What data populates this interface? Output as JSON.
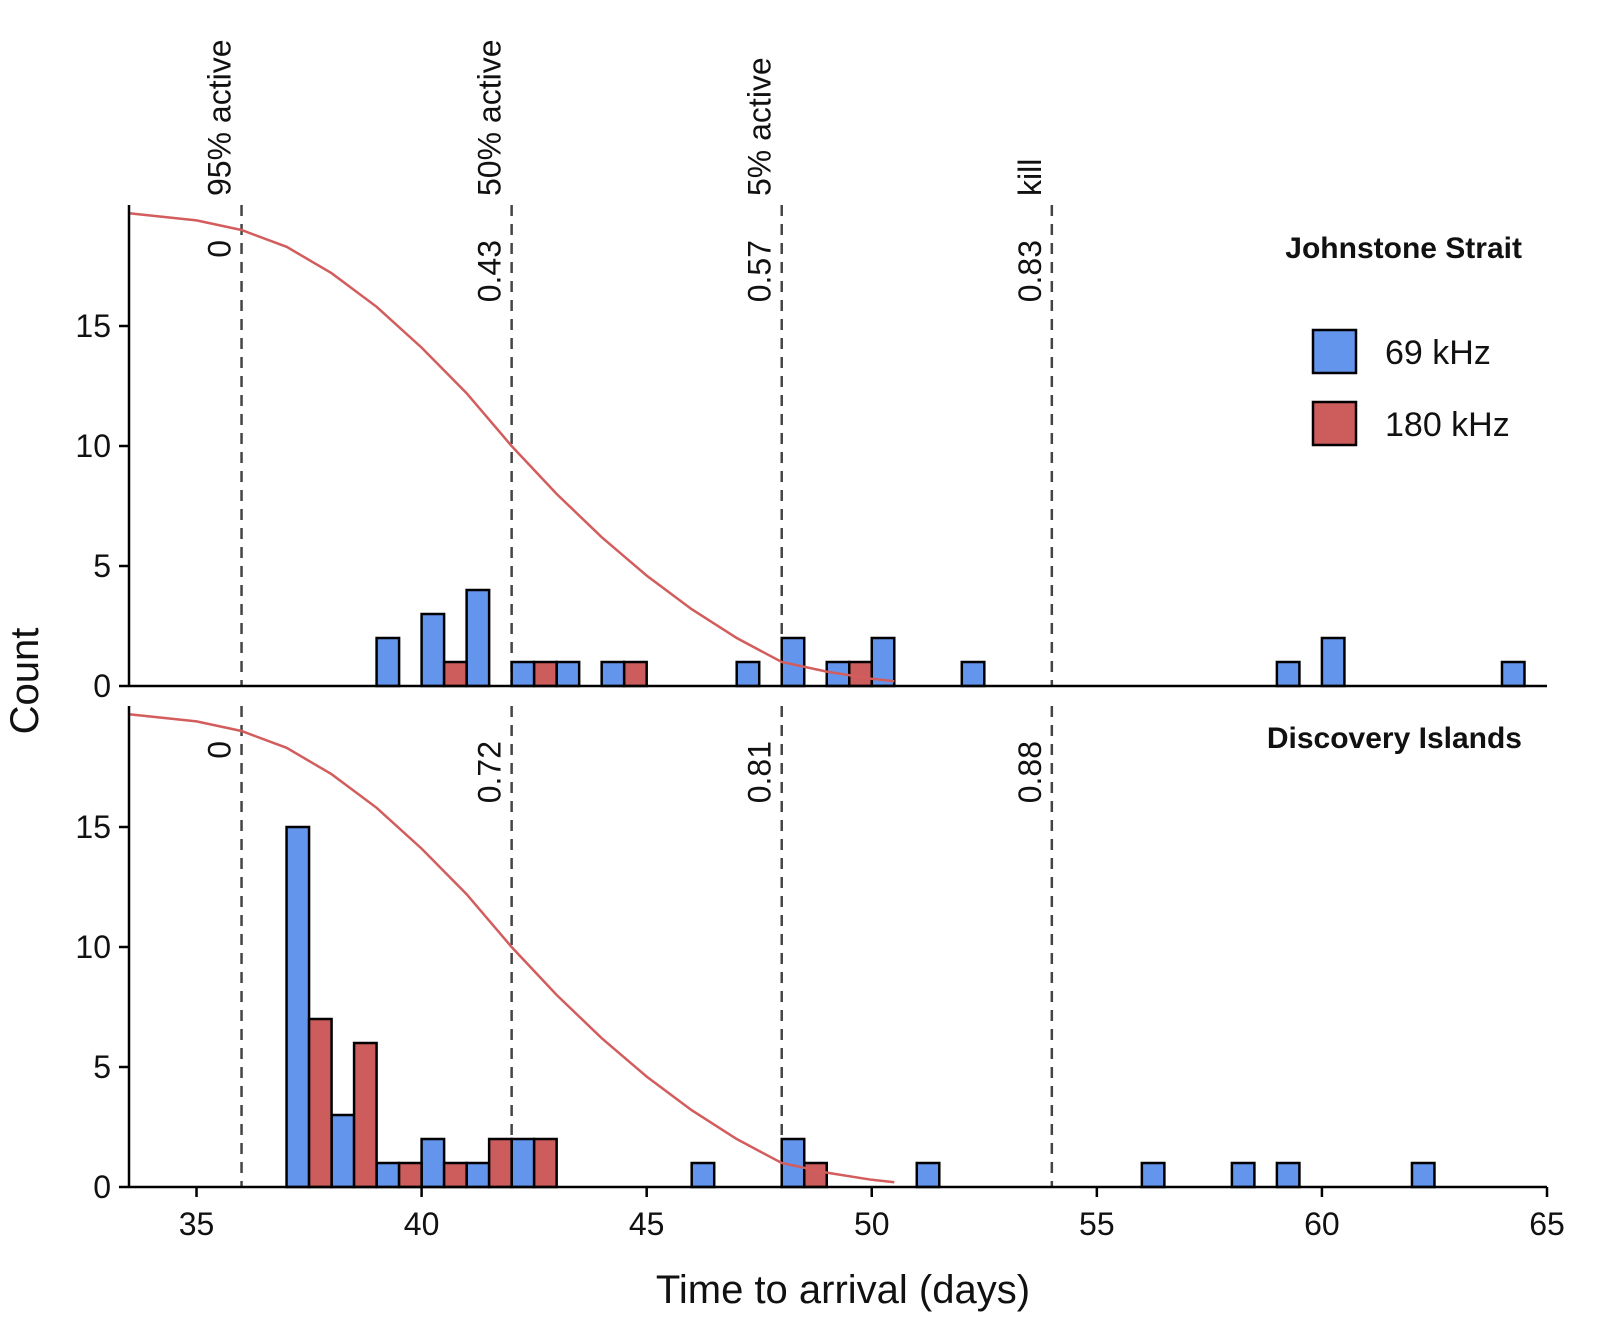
{
  "chart_data": {
    "type": "bar",
    "subtype": "histogram",
    "xlabel": "Time to arrival (days)",
    "ylabel": "Count",
    "xlim": [
      33.5,
      65
    ],
    "xticks": [
      35,
      40,
      45,
      50,
      55,
      60,
      65
    ],
    "ylim": [
      0,
      19.8
    ],
    "yticks": [
      0,
      5,
      10,
      15
    ],
    "bin_width": 0.5,
    "colors": {
      "69 kHz": "#6495ed",
      "180 kHz": "#cd5c5c",
      "curve": "#d35c5c"
    },
    "legend": {
      "position": "right",
      "entries": [
        "69 kHz",
        "180 kHz"
      ]
    },
    "vlines": [
      {
        "x": 36,
        "label": "95% active"
      },
      {
        "x": 42,
        "label": "50% active"
      },
      {
        "x": 48,
        "label": "5% active"
      },
      {
        "x": 54,
        "label": "kill"
      }
    ],
    "curve": {
      "description": "decreasing activity curve scaled to panel",
      "x": [
        33.5,
        34,
        35,
        36,
        37,
        38,
        39,
        40,
        41,
        42,
        43,
        44,
        45,
        46,
        47,
        48,
        49,
        50,
        50.5
      ],
      "y": [
        19.7,
        19.6,
        19.4,
        19.0,
        18.3,
        17.2,
        15.8,
        14.1,
        12.2,
        10.0,
        8.0,
        6.2,
        4.6,
        3.2,
        2.0,
        1.0,
        0.6,
        0.3,
        0.2
      ]
    },
    "panels": [
      {
        "title": "Johnstone Strait",
        "vline_values": [
          "0",
          "0.43",
          "0.57",
          "0.83"
        ],
        "series": [
          {
            "name": "69 kHz",
            "bins": [
              {
                "start": 39.0,
                "count": 2
              },
              {
                "start": 40.0,
                "count": 3
              },
              {
                "start": 41.0,
                "count": 4
              },
              {
                "start": 42.0,
                "count": 1
              },
              {
                "start": 43.0,
                "count": 1
              },
              {
                "start": 44.0,
                "count": 1
              },
              {
                "start": 47.0,
                "count": 1
              },
              {
                "start": 48.0,
                "count": 2
              },
              {
                "start": 49.0,
                "count": 1
              },
              {
                "start": 50.0,
                "count": 2
              },
              {
                "start": 52.0,
                "count": 1
              },
              {
                "start": 59.0,
                "count": 1
              },
              {
                "start": 60.0,
                "count": 2
              },
              {
                "start": 64.0,
                "count": 1
              }
            ]
          },
          {
            "name": "180 kHz",
            "bins": [
              {
                "start": 40.5,
                "count": 1
              },
              {
                "start": 42.5,
                "count": 1
              },
              {
                "start": 44.5,
                "count": 1
              },
              {
                "start": 49.5,
                "count": 1
              }
            ]
          }
        ]
      },
      {
        "title": "Discovery Islands",
        "vline_values": [
          "0",
          "0.72",
          "0.81",
          "0.88"
        ],
        "series": [
          {
            "name": "69 kHz",
            "bins": [
              {
                "start": 37.0,
                "count": 15
              },
              {
                "start": 38.0,
                "count": 3
              },
              {
                "start": 39.0,
                "count": 1
              },
              {
                "start": 40.0,
                "count": 2
              },
              {
                "start": 41.0,
                "count": 1
              },
              {
                "start": 42.0,
                "count": 2
              },
              {
                "start": 46.0,
                "count": 1
              },
              {
                "start": 48.0,
                "count": 2
              },
              {
                "start": 51.0,
                "count": 1
              },
              {
                "start": 56.0,
                "count": 1
              },
              {
                "start": 58.0,
                "count": 1
              },
              {
                "start": 59.0,
                "count": 1
              },
              {
                "start": 62.0,
                "count": 1
              }
            ]
          },
          {
            "name": "180 kHz",
            "bins": [
              {
                "start": 37.5,
                "count": 7
              },
              {
                "start": 38.5,
                "count": 6
              },
              {
                "start": 39.5,
                "count": 1
              },
              {
                "start": 40.5,
                "count": 1
              },
              {
                "start": 41.5,
                "count": 2
              },
              {
                "start": 42.5,
                "count": 2
              },
              {
                "start": 48.5,
                "count": 1
              }
            ]
          }
        ]
      }
    ]
  }
}
